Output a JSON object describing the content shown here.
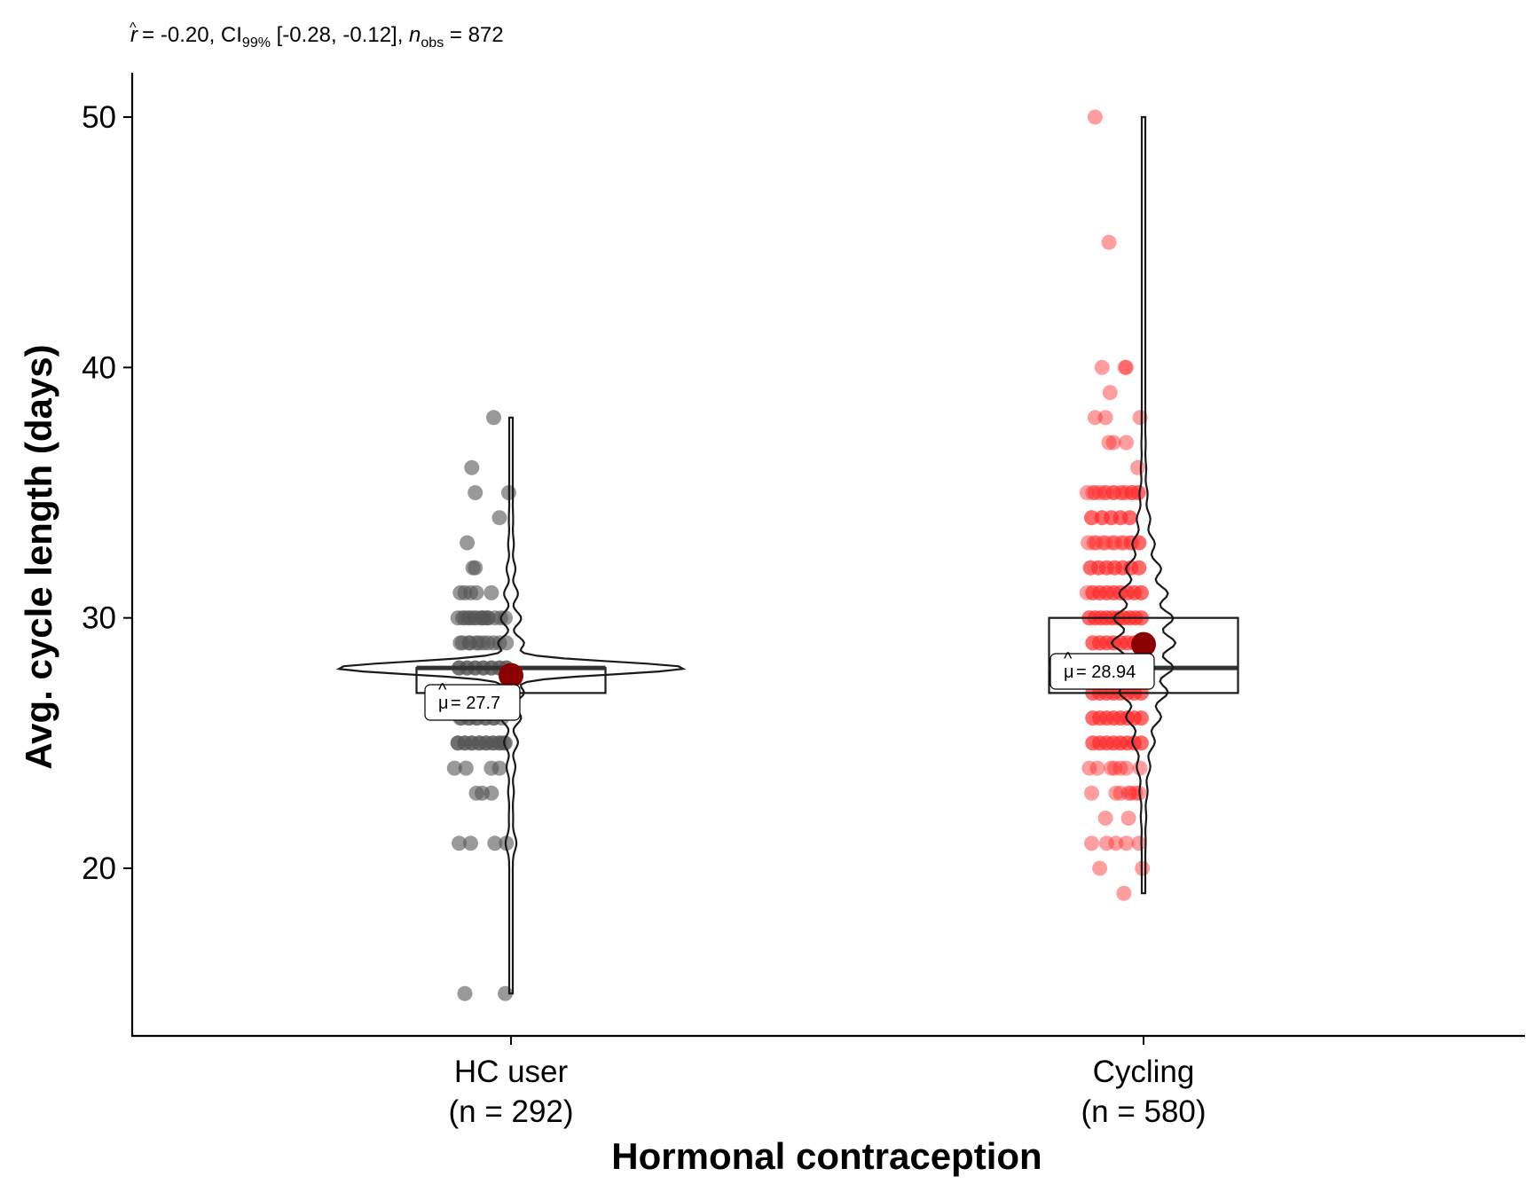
{
  "chart_data": {
    "type": "box-violin",
    "subtitle": {
      "r_hat": "-0.20",
      "ci_level": "99%",
      "ci": "[-0.28, -0.12]",
      "n_obs": "872"
    },
    "xlabel": "Hormonal contraception",
    "ylabel": "Avg. cycle length (days)",
    "ylim": [
      13.3,
      52
    ],
    "yticks": [
      20,
      30,
      40,
      50
    ],
    "grid": false,
    "groups": [
      {
        "label": "HC user",
        "n_label": "(n = 292)",
        "color": "#555555",
        "box": {
          "q1": 27,
          "median": 28,
          "q3": 28
        },
        "violin": {
          "min": 15,
          "max": 38
        },
        "mean": 27.7,
        "mean_label": "= 27.7",
        "points": [
          [
            38,
            0.35
          ],
          [
            36,
            0.16
          ],
          [
            35,
            0.48
          ],
          [
            35,
            0.19
          ],
          [
            34,
            0.4
          ],
          [
            33,
            0.12
          ],
          [
            32,
            0.19
          ],
          [
            32,
            0.17
          ],
          [
            31,
            0.33
          ],
          [
            31,
            0.2
          ],
          [
            31,
            0.1
          ],
          [
            31,
            0.15
          ],
          [
            31,
            0.06
          ],
          [
            30,
            0.45
          ],
          [
            30,
            0.41
          ],
          [
            30,
            0.36
          ],
          [
            30,
            0.3
          ],
          [
            30,
            0.25
          ],
          [
            30,
            0.18
          ],
          [
            30,
            0.13
          ],
          [
            30,
            0.08
          ],
          [
            30,
            0.04
          ],
          [
            30,
            0.1
          ],
          [
            30,
            0.15
          ],
          [
            30,
            0.2
          ],
          [
            30,
            0.24
          ],
          [
            30,
            0.27
          ],
          [
            30,
            0.3
          ],
          [
            29,
            0.46
          ],
          [
            29,
            0.4
          ],
          [
            29,
            0.35
          ],
          [
            29,
            0.3
          ],
          [
            29,
            0.22
          ],
          [
            29,
            0.14
          ],
          [
            29,
            0.06
          ],
          [
            29,
            0.08
          ],
          [
            29,
            0.14
          ],
          [
            29,
            0.2
          ],
          [
            29,
            0.26
          ],
          [
            28,
            0.46
          ],
          [
            28,
            0.4
          ],
          [
            28,
            0.33
          ],
          [
            28,
            0.26
          ],
          [
            28,
            0.19
          ],
          [
            28,
            0.12
          ],
          [
            28,
            0.05
          ],
          [
            28,
            0.05
          ],
          [
            28,
            0.12
          ],
          [
            28,
            0.19
          ],
          [
            28,
            0.26
          ],
          [
            28,
            0.33
          ],
          [
            28,
            0.4
          ],
          [
            28,
            0.46
          ],
          [
            27,
            0.44
          ],
          [
            27,
            0.37
          ],
          [
            27,
            0.3
          ],
          [
            27,
            0.22
          ],
          [
            27,
            0.15
          ],
          [
            27,
            0.08
          ],
          [
            27,
            0.08
          ],
          [
            27,
            0.15
          ],
          [
            27,
            0.22
          ],
          [
            27,
            0.3
          ],
          [
            27,
            0.37
          ],
          [
            27,
            0.44
          ],
          [
            26,
            0.42
          ],
          [
            26,
            0.35
          ],
          [
            26,
            0.28
          ],
          [
            26,
            0.2
          ],
          [
            26,
            0.13
          ],
          [
            26,
            0.06
          ],
          [
            26,
            0.07
          ],
          [
            26,
            0.14
          ],
          [
            26,
            0.21
          ],
          [
            26,
            0.28
          ],
          [
            26,
            0.35
          ],
          [
            25,
            0.44
          ],
          [
            25,
            0.4
          ],
          [
            25,
            0.35
          ],
          [
            25,
            0.29
          ],
          [
            25,
            0.23
          ],
          [
            25,
            0.16
          ],
          [
            25,
            0.1
          ],
          [
            25,
            0.04
          ],
          [
            25,
            0.04
          ],
          [
            25,
            0.1
          ],
          [
            25,
            0.16
          ],
          [
            25,
            0.22
          ],
          [
            25,
            0.28
          ],
          [
            25,
            0.34
          ],
          [
            25,
            0.4
          ],
          [
            25,
            0.45
          ],
          [
            24,
            0.4
          ],
          [
            24,
            0.01
          ],
          [
            24,
            0.11
          ],
          [
            24,
            0.33
          ],
          [
            23,
            0.2
          ],
          [
            23,
            0.25
          ],
          [
            23,
            0.33
          ],
          [
            21,
            0.46
          ],
          [
            21,
            0.15
          ],
          [
            21,
            0.05
          ],
          [
            21,
            0.36
          ],
          [
            15,
            0.1
          ],
          [
            15,
            0.45
          ]
        ]
      },
      {
        "label": "Cycling",
        "n_label": "(n = 580)",
        "color": "#ff2828",
        "box": {
          "q1": 27,
          "median": 28,
          "q3": 30
        },
        "violin": {
          "min": 19,
          "max": 50
        },
        "mean": 28.94,
        "mean_label": "= 28.94",
        "points": [
          [
            50,
            0.08
          ],
          [
            45,
            0.2
          ],
          [
            40,
            0.35
          ],
          [
            40,
            0.34
          ],
          [
            40,
            0.14
          ],
          [
            39,
            0.21
          ],
          [
            38,
            0.47
          ],
          [
            38,
            0.08
          ],
          [
            38,
            0.17
          ],
          [
            37,
            0.35
          ],
          [
            37,
            0.2
          ],
          [
            37,
            0.24
          ],
          [
            36,
            0.45
          ],
          [
            35,
            0.45
          ],
          [
            35,
            0.4
          ],
          [
            35,
            0.35
          ],
          [
            35,
            0.3
          ],
          [
            35,
            0.24
          ],
          [
            35,
            0.18
          ],
          [
            35,
            0.12
          ],
          [
            35,
            0.06
          ],
          [
            35,
            0.01
          ],
          [
            35,
            0.08
          ],
          [
            35,
            0.16
          ],
          [
            35,
            0.24
          ],
          [
            35,
            0.32
          ],
          [
            35,
            0.4
          ],
          [
            35,
            0.46
          ],
          [
            34,
            0.38
          ],
          [
            34,
            0.3
          ],
          [
            34,
            0.22
          ],
          [
            34,
            0.14
          ],
          [
            34,
            0.05
          ],
          [
            34,
            0.05
          ],
          [
            34,
            0.14
          ],
          [
            34,
            0.22
          ],
          [
            34,
            0.3
          ],
          [
            34,
            0.38
          ],
          [
            33,
            0.46
          ],
          [
            33,
            0.4
          ],
          [
            33,
            0.33
          ],
          [
            33,
            0.25
          ],
          [
            33,
            0.17
          ],
          [
            33,
            0.09
          ],
          [
            33,
            0.02
          ],
          [
            33,
            0.07
          ],
          [
            33,
            0.15
          ],
          [
            33,
            0.23
          ],
          [
            33,
            0.31
          ],
          [
            33,
            0.39
          ],
          [
            33,
            0.46
          ],
          [
            32,
            0.46
          ],
          [
            32,
            0.39
          ],
          [
            32,
            0.32
          ],
          [
            32,
            0.25
          ],
          [
            32,
            0.18
          ],
          [
            32,
            0.11
          ],
          [
            32,
            0.04
          ],
          [
            32,
            0.04
          ],
          [
            32,
            0.11
          ],
          [
            32,
            0.18
          ],
          [
            32,
            0.25
          ],
          [
            32,
            0.32
          ],
          [
            32,
            0.39
          ],
          [
            32,
            0.46
          ],
          [
            31,
            0.48
          ],
          [
            31,
            0.42
          ],
          [
            31,
            0.36
          ],
          [
            31,
            0.3
          ],
          [
            31,
            0.24
          ],
          [
            31,
            0.18
          ],
          [
            31,
            0.12
          ],
          [
            31,
            0.06
          ],
          [
            31,
            0.01
          ],
          [
            31,
            0.06
          ],
          [
            31,
            0.12
          ],
          [
            31,
            0.18
          ],
          [
            31,
            0.24
          ],
          [
            31,
            0.3
          ],
          [
            31,
            0.36
          ],
          [
            31,
            0.42
          ],
          [
            31,
            0.48
          ],
          [
            30,
            0.48
          ],
          [
            30,
            0.43
          ],
          [
            30,
            0.38
          ],
          [
            30,
            0.33
          ],
          [
            30,
            0.28
          ],
          [
            30,
            0.23
          ],
          [
            30,
            0.18
          ],
          [
            30,
            0.13
          ],
          [
            30,
            0.08
          ],
          [
            30,
            0.03
          ],
          [
            30,
            0.03
          ],
          [
            30,
            0.08
          ],
          [
            30,
            0.13
          ],
          [
            30,
            0.18
          ],
          [
            30,
            0.23
          ],
          [
            30,
            0.28
          ],
          [
            30,
            0.33
          ],
          [
            30,
            0.38
          ],
          [
            30,
            0.43
          ],
          [
            30,
            0.48
          ],
          [
            29,
            0.48
          ],
          [
            29,
            0.42
          ],
          [
            29,
            0.36
          ],
          [
            29,
            0.3
          ],
          [
            29,
            0.24
          ],
          [
            29,
            0.18
          ],
          [
            29,
            0.12
          ],
          [
            29,
            0.06
          ],
          [
            29,
            0.06
          ],
          [
            29,
            0.12
          ],
          [
            29,
            0.18
          ],
          [
            29,
            0.24
          ],
          [
            29,
            0.3
          ],
          [
            29,
            0.36
          ],
          [
            29,
            0.42
          ],
          [
            29,
            0.48
          ],
          [
            28,
            0.48
          ],
          [
            28,
            0.42
          ],
          [
            28,
            0.36
          ],
          [
            28,
            0.3
          ],
          [
            28,
            0.24
          ],
          [
            28,
            0.18
          ],
          [
            28,
            0.12
          ],
          [
            28,
            0.06
          ],
          [
            28,
            0.01
          ],
          [
            28,
            0.06
          ],
          [
            28,
            0.12
          ],
          [
            28,
            0.18
          ],
          [
            28,
            0.24
          ],
          [
            28,
            0.3
          ],
          [
            28,
            0.36
          ],
          [
            28,
            0.42
          ],
          [
            28,
            0.48
          ],
          [
            27,
            0.48
          ],
          [
            27,
            0.42
          ],
          [
            27,
            0.36
          ],
          [
            27,
            0.3
          ],
          [
            27,
            0.24
          ],
          [
            27,
            0.18
          ],
          [
            27,
            0.12
          ],
          [
            27,
            0.06
          ],
          [
            27,
            0.06
          ],
          [
            27,
            0.12
          ],
          [
            27,
            0.18
          ],
          [
            27,
            0.24
          ],
          [
            27,
            0.3
          ],
          [
            27,
            0.36
          ],
          [
            27,
            0.42
          ],
          [
            27,
            0.48
          ],
          [
            26,
            0.48
          ],
          [
            26,
            0.42
          ],
          [
            26,
            0.36
          ],
          [
            26,
            0.3
          ],
          [
            26,
            0.24
          ],
          [
            26,
            0.18
          ],
          [
            26,
            0.12
          ],
          [
            26,
            0.06
          ],
          [
            26,
            0.06
          ],
          [
            26,
            0.12
          ],
          [
            26,
            0.18
          ],
          [
            26,
            0.24
          ],
          [
            26,
            0.3
          ],
          [
            26,
            0.36
          ],
          [
            26,
            0.42
          ],
          [
            26,
            0.48
          ],
          [
            25,
            0.48
          ],
          [
            25,
            0.42
          ],
          [
            25,
            0.36
          ],
          [
            25,
            0.3
          ],
          [
            25,
            0.24
          ],
          [
            25,
            0.18
          ],
          [
            25,
            0.12
          ],
          [
            25,
            0.06
          ],
          [
            25,
            0.06
          ],
          [
            25,
            0.12
          ],
          [
            25,
            0.18
          ],
          [
            25,
            0.24
          ],
          [
            25,
            0.3
          ],
          [
            25,
            0.36
          ],
          [
            25,
            0.42
          ],
          [
            25,
            0.48
          ],
          [
            24,
            0.1
          ],
          [
            24,
            0.35
          ],
          [
            24,
            0.25
          ],
          [
            24,
            0.22
          ],
          [
            24,
            0.3
          ],
          [
            24,
            0.03
          ],
          [
            24,
            0.47
          ],
          [
            23,
            0.46
          ],
          [
            23,
            0.39
          ],
          [
            23,
            0.05
          ],
          [
            23,
            0.26
          ],
          [
            23,
            0.37
          ],
          [
            23,
            0.43
          ],
          [
            23,
            0.3
          ],
          [
            22,
            0.37
          ],
          [
            22,
            0.17
          ],
          [
            21,
            0.35
          ],
          [
            21,
            0.05
          ],
          [
            21,
            0.26
          ],
          [
            21,
            0.18
          ],
          [
            21,
            0.46
          ],
          [
            20,
            0.49
          ],
          [
            20,
            0.12
          ],
          [
            19,
            0.33
          ]
        ]
      }
    ]
  }
}
